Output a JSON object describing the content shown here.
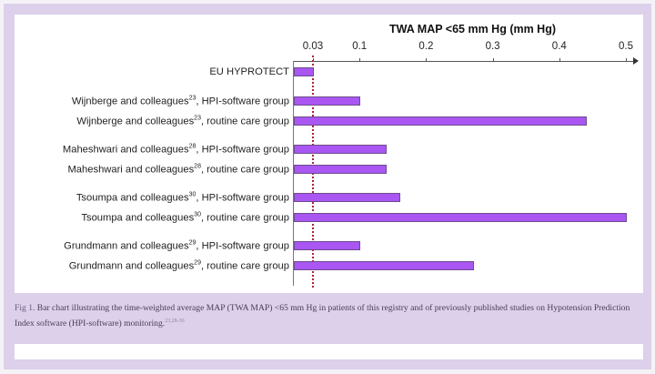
{
  "chart_data": {
    "type": "bar",
    "orientation": "horizontal",
    "title": "TWA MAP <65 mm Hg (mm Hg)",
    "xlabel": "TWA MAP <65 mm Hg (mm Hg)",
    "ylabel": "",
    "xlim": [
      0,
      0.5
    ],
    "x_ticks": [
      "0.03",
      "0.1",
      "0.2",
      "0.3",
      "0.4",
      "0.5"
    ],
    "reference_line": {
      "value": 0.03,
      "style": "dotted",
      "color": "#b0203a"
    },
    "categories": [
      "EU HYPROTECT",
      "Wijnberge and colleagues23, HPI-software group",
      "Wijnberge and colleagues23, routine care group",
      "Maheshwari and colleagues28, HPI-software group",
      "Maheshwari and colleagues28, routine care group",
      "Tsoumpa and colleagues30, HPI-software group",
      "Tsoumpa and colleagues30, routine care group",
      "Grundmann and colleagues29, HPI-software group",
      "Grundmann and colleagues29, routine care group"
    ],
    "values": [
      0.03,
      0.1,
      0.44,
      0.14,
      0.14,
      0.16,
      0.5,
      0.1,
      0.27
    ],
    "bar_color": "#a956f2",
    "grid": false,
    "legend": null
  },
  "axis": {
    "title": "TWA MAP <65 mm Hg (mm Hg)",
    "ticks": [
      {
        "label": "0.03",
        "value": 0.03
      },
      {
        "label": "0.1",
        "value": 0.1
      },
      {
        "label": "0.2",
        "value": 0.2
      },
      {
        "label": "0.3",
        "value": 0.3
      },
      {
        "label": "0.4",
        "value": 0.4
      },
      {
        "label": "0.5",
        "value": 0.5
      }
    ]
  },
  "rows": [
    {
      "name": "EU HYPROTECT",
      "ref": "",
      "group": "",
      "value": 0.03
    },
    {
      "name": "Wijnberge and  colleagues",
      "ref": "23",
      "group": ", HPI-software group",
      "value": 0.1
    },
    {
      "name": "Wijnberge and  colleagues",
      "ref": "23",
      "group": ", routine care group",
      "value": 0.44
    },
    {
      "name": "Maheshwari and  colleagues",
      "ref": "28",
      "group": ", HPI-software group",
      "value": 0.14
    },
    {
      "name": "Maheshwari and  colleagues",
      "ref": "28",
      "group": ", routine care group",
      "value": 0.14
    },
    {
      "name": "Tsoumpa and  colleagues",
      "ref": "30",
      "group": ", HPI-software group",
      "value": 0.16
    },
    {
      "name": "Tsoumpa and  colleagues",
      "ref": "30",
      "group": ", routine care group",
      "value": 0.5
    },
    {
      "name": "Grundmann and  colleagues",
      "ref": "29",
      "group": ", HPI-software group",
      "value": 0.1
    },
    {
      "name": "Grundmann and  colleagues",
      "ref": "29",
      "group": ", routine care group",
      "value": 0.27
    }
  ],
  "caption": {
    "fig_label": "Fig 1.",
    "text": " Bar chart illustrating the time-weighted average MAP (TWA MAP) <65 mm Hg in patients of this registry and of previously published studies on Hypotension Prediction Index software (HPI-software) monitoring.",
    "refs": "23,28-30"
  },
  "colors": {
    "frame": "#dcd0ea",
    "bar": "#a956f2",
    "bar_border": "#6d4d8c",
    "reference_line": "#b0203a"
  }
}
